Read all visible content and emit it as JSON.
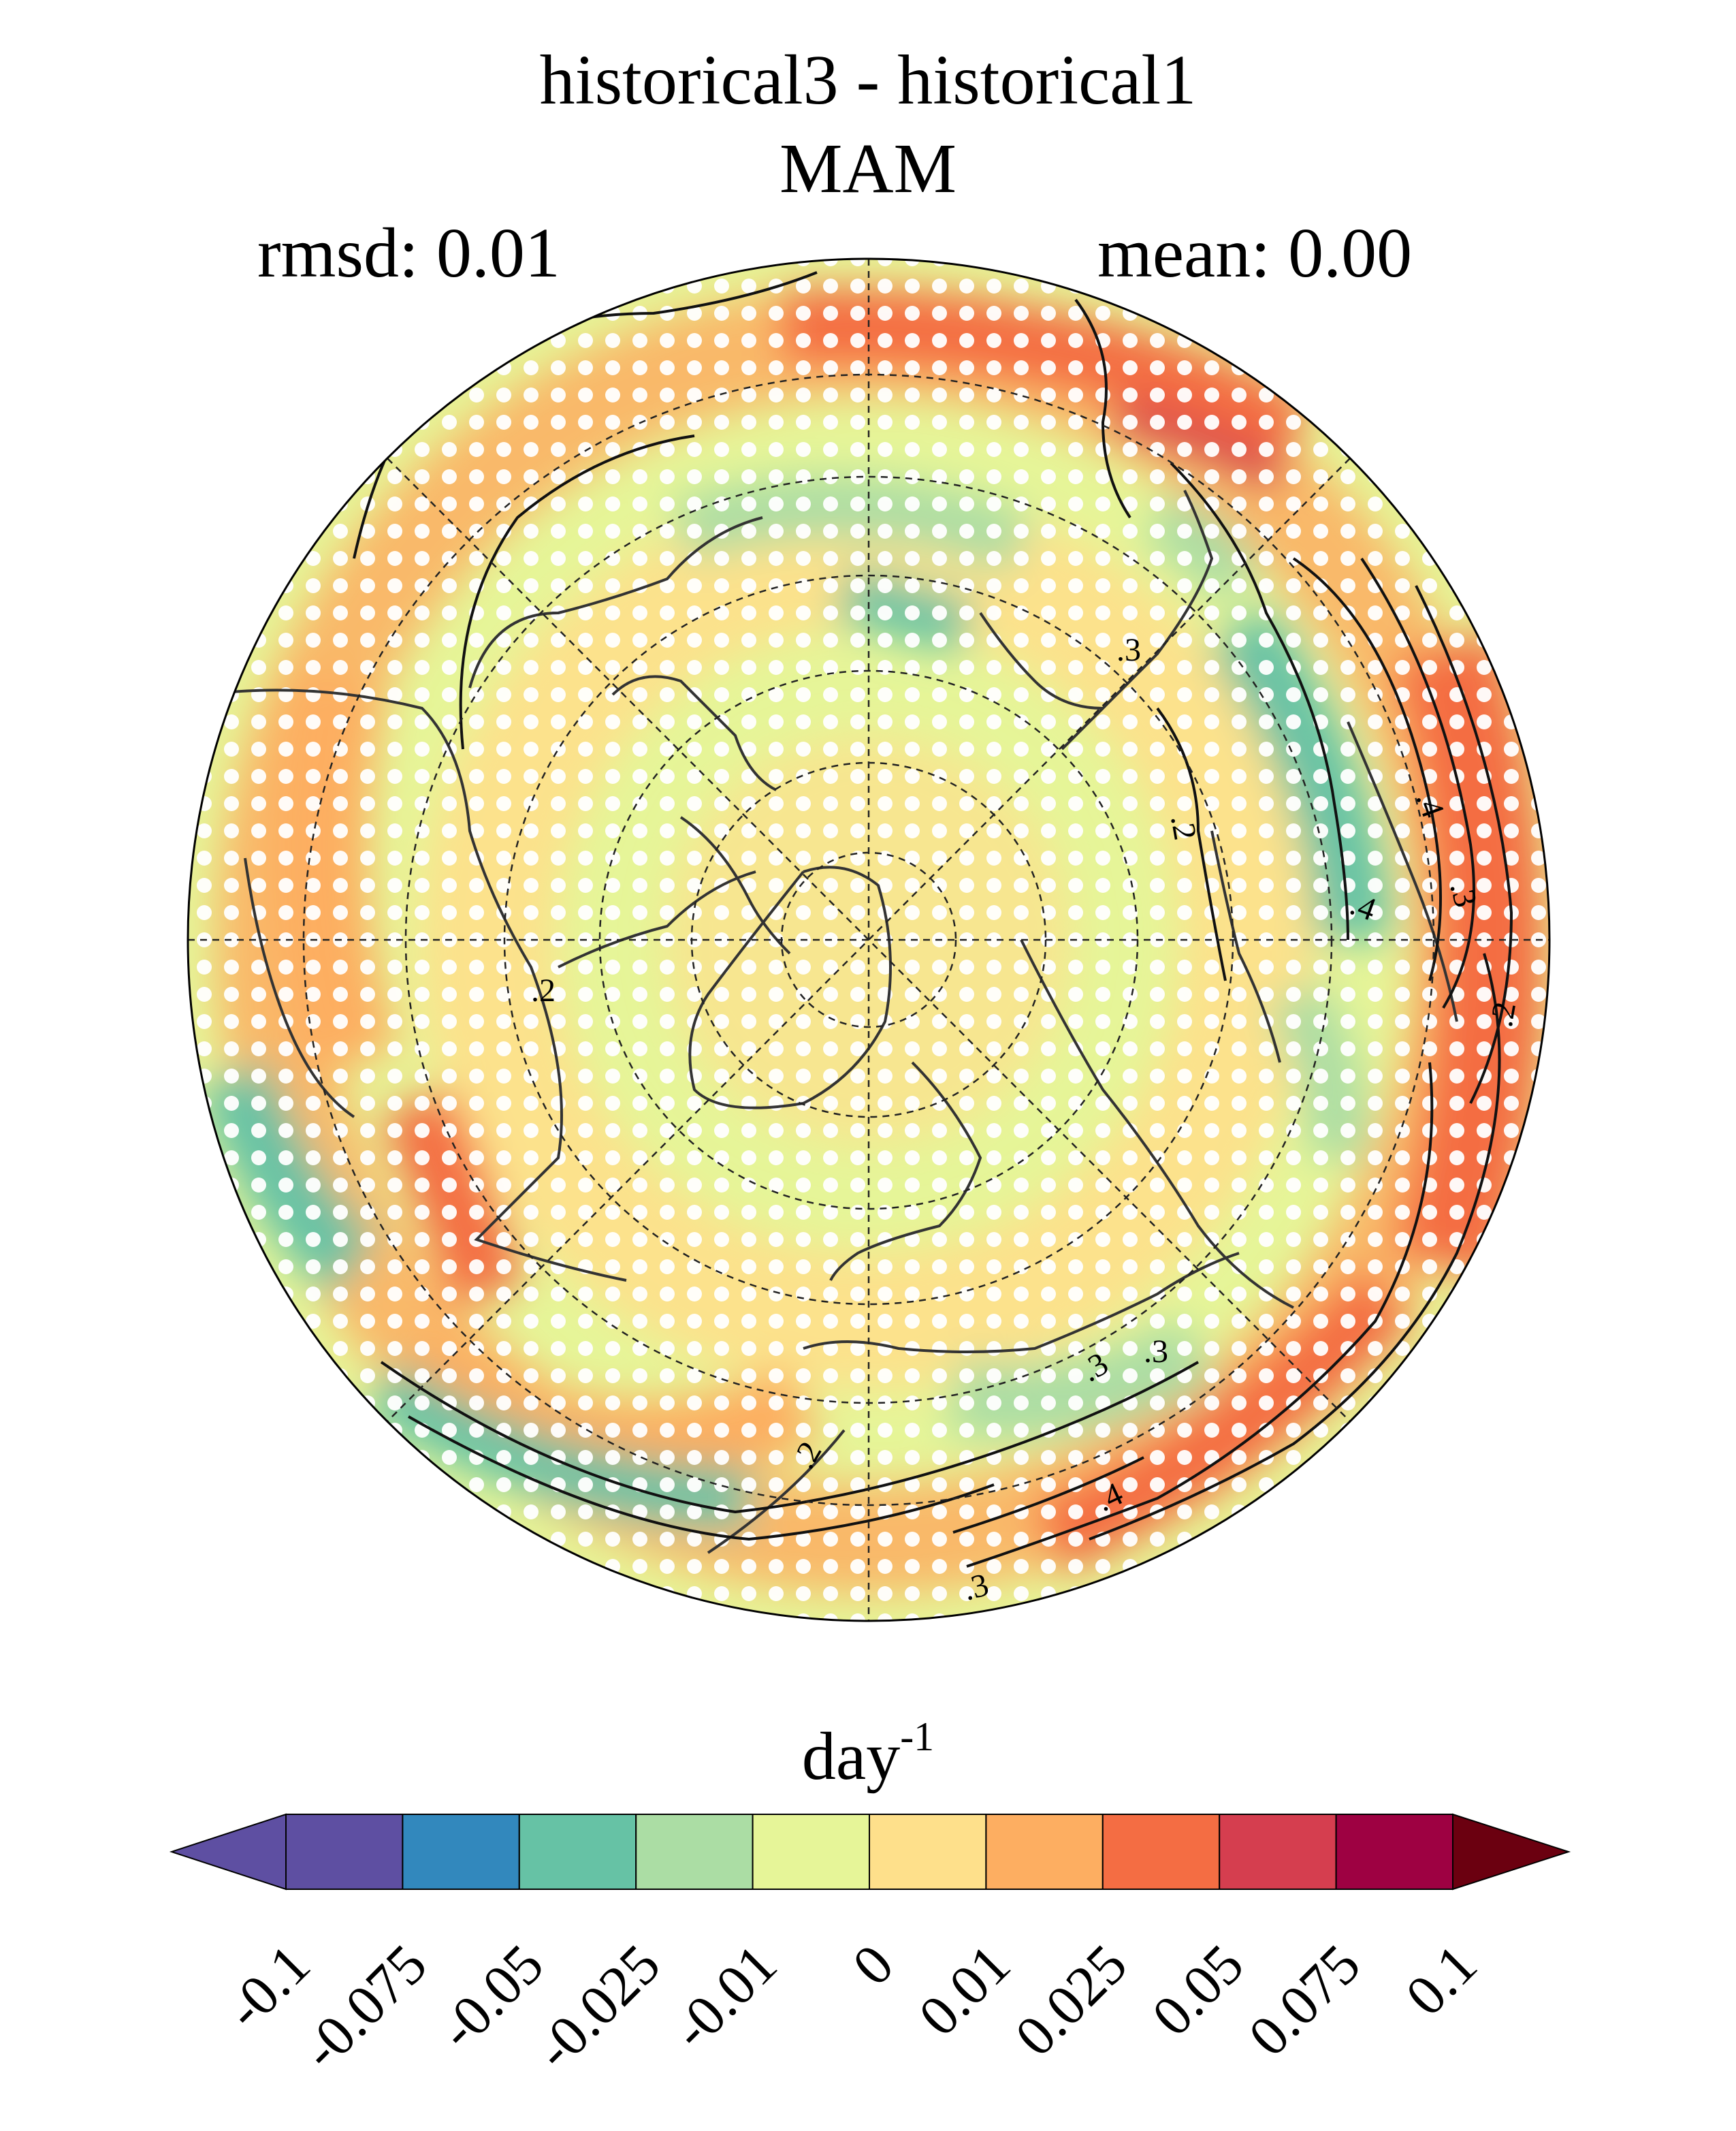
{
  "title": "historical3 - historical1",
  "season": "MAM",
  "rmsd_label": "rmsd: 0.01",
  "mean_label": "mean: 0.00",
  "colorbar": {
    "unit_base": "day",
    "unit_exp": "-1",
    "ticks": [
      "-0.1",
      "-0.075",
      "-0.05",
      "-0.025",
      "-0.01",
      "0",
      "0.01",
      "0.025",
      "0.05",
      "0.075",
      "0.1"
    ],
    "colors": [
      "#5e4fa2",
      "#5e4fa2",
      "#3288bd",
      "#66c2a5",
      "#abdda4",
      "#e6f598",
      "#fee08b",
      "#fdae61",
      "#f46d43",
      "#d53e4f",
      "#9e0142",
      "#6b0010"
    ]
  },
  "map": {
    "projection": "north-polar-stereographic",
    "stippling": "white dots mark significant regions",
    "contour_labels": [
      ".3",
      ".4",
      ".3",
      ".2",
      ".2",
      ".4",
      ".3",
      ".2",
      ".3",
      ".2",
      ".4",
      ".3"
    ]
  }
}
